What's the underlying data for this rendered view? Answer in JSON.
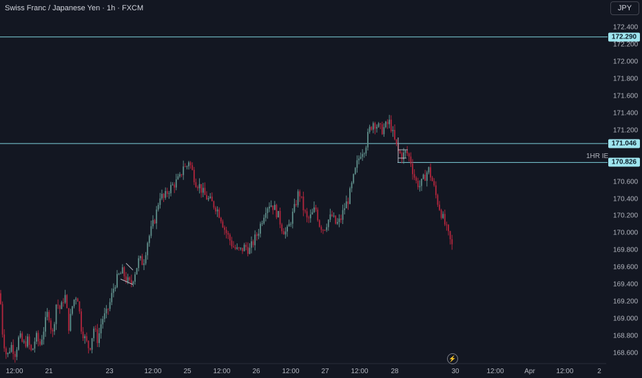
{
  "header": {
    "title": "Swiss Franc / Japanese Yen · 1h · FXCM"
  },
  "controls": {
    "currency_button": "JPY"
  },
  "colors": {
    "background": "#131722",
    "up": "#5f8f8b",
    "down": "#b3263d",
    "level_line": "#7fd3dd",
    "level_label_bg": "#9fe5ef"
  },
  "chart_data": {
    "type": "candlestick",
    "symbol": "CHFJPY",
    "interval": "1h",
    "source": "FXCM",
    "currency": "JPY",
    "ylim": [
      168.5,
      172.5
    ],
    "y_ticks": [
      "172.400",
      "172.200",
      "172.000",
      "171.800",
      "171.600",
      "171.400",
      "171.200",
      "170.600",
      "170.400",
      "170.200",
      "170.000",
      "169.800",
      "169.600",
      "169.400",
      "169.200",
      "169.000",
      "168.800",
      "168.600"
    ],
    "x_ticks": [
      "12:00",
      "21",
      "23",
      "12:00",
      "25",
      "12:00",
      "26",
      "12:00",
      "27",
      "12:00",
      "28",
      "30",
      "12:00",
      "Apr",
      "12:00",
      "2"
    ],
    "levels": [
      {
        "price": 172.29,
        "label": "172.290"
      },
      {
        "price": 171.046,
        "label": "171.046"
      },
      {
        "price": 170.826,
        "label": "170.826",
        "annotation": "1HR IE"
      }
    ],
    "close_path": [
      [
        0,
        169.3
      ],
      [
        4,
        168.8
      ],
      [
        10,
        168.55
      ],
      [
        16,
        168.7
      ],
      [
        22,
        168.6
      ],
      [
        28,
        168.8
      ],
      [
        34,
        168.7
      ],
      [
        40,
        168.75
      ],
      [
        46,
        168.6
      ],
      [
        52,
        168.8
      ],
      [
        58,
        168.7
      ],
      [
        64,
        168.9
      ],
      [
        70,
        169.1
      ],
      [
        76,
        168.8
      ],
      [
        82,
        169.2
      ],
      [
        88,
        169.1
      ],
      [
        94,
        169.3
      ],
      [
        100,
        168.9
      ],
      [
        106,
        169.2
      ],
      [
        112,
        169.3
      ],
      [
        118,
        168.9
      ],
      [
        124,
        168.75
      ],
      [
        130,
        168.65
      ],
      [
        136,
        168.9
      ],
      [
        142,
        168.75
      ],
      [
        148,
        169.0
      ],
      [
        154,
        169.05
      ],
      [
        160,
        169.2
      ],
      [
        166,
        169.4
      ],
      [
        172,
        169.5
      ],
      [
        178,
        169.55
      ],
      [
        184,
        169.45
      ],
      [
        190,
        169.4
      ],
      [
        196,
        169.55
      ],
      [
        202,
        169.7
      ],
      [
        208,
        169.65
      ],
      [
        214,
        169.9
      ],
      [
        220,
        170.05
      ],
      [
        226,
        170.2
      ],
      [
        232,
        170.45
      ],
      [
        238,
        170.4
      ],
      [
        244,
        170.5
      ],
      [
        250,
        170.55
      ],
      [
        256,
        170.6
      ],
      [
        262,
        170.65
      ],
      [
        266,
        170.8
      ],
      [
        270,
        170.75
      ],
      [
        274,
        170.85
      ],
      [
        278,
        170.75
      ],
      [
        284,
        170.6
      ],
      [
        290,
        170.55
      ],
      [
        296,
        170.45
      ],
      [
        302,
        170.4
      ],
      [
        308,
        170.35
      ],
      [
        314,
        170.3
      ],
      [
        320,
        170.2
      ],
      [
        326,
        170.05
      ],
      [
        332,
        169.95
      ],
      [
        338,
        169.85
      ],
      [
        344,
        169.8
      ],
      [
        350,
        169.8
      ],
      [
        356,
        169.85
      ],
      [
        362,
        169.8
      ],
      [
        368,
        169.9
      ],
      [
        374,
        170.0
      ],
      [
        380,
        170.15
      ],
      [
        386,
        170.3
      ],
      [
        392,
        170.35
      ],
      [
        398,
        170.3
      ],
      [
        404,
        170.2
      ],
      [
        410,
        170.05
      ],
      [
        416,
        170.0
      ],
      [
        422,
        170.15
      ],
      [
        428,
        170.3
      ],
      [
        434,
        170.5
      ],
      [
        440,
        170.3
      ],
      [
        446,
        170.15
      ],
      [
        452,
        170.2
      ],
      [
        458,
        170.3
      ],
      [
        464,
        170.1
      ],
      [
        470,
        170.05
      ],
      [
        476,
        170.15
      ],
      [
        482,
        170.2
      ],
      [
        488,
        170.1
      ],
      [
        494,
        170.15
      ],
      [
        500,
        170.3
      ],
      [
        506,
        170.4
      ],
      [
        512,
        170.6
      ],
      [
        518,
        170.8
      ],
      [
        524,
        170.95
      ],
      [
        530,
        171.0
      ],
      [
        536,
        171.2
      ],
      [
        542,
        171.3
      ],
      [
        548,
        171.25
      ],
      [
        554,
        171.2
      ],
      [
        560,
        171.25
      ],
      [
        566,
        171.3
      ],
      [
        572,
        171.1
      ],
      [
        578,
        170.95
      ],
      [
        584,
        170.9
      ],
      [
        590,
        170.95
      ],
      [
        596,
        170.85
      ],
      [
        600,
        170.7
      ],
      [
        604,
        170.6
      ],
      [
        610,
        170.55
      ],
      [
        616,
        170.65
      ],
      [
        622,
        170.75
      ],
      [
        628,
        170.6
      ],
      [
        634,
        170.4
      ],
      [
        640,
        170.25
      ],
      [
        646,
        170.1
      ],
      [
        652,
        169.95
      ],
      [
        656,
        169.85
      ]
    ]
  }
}
